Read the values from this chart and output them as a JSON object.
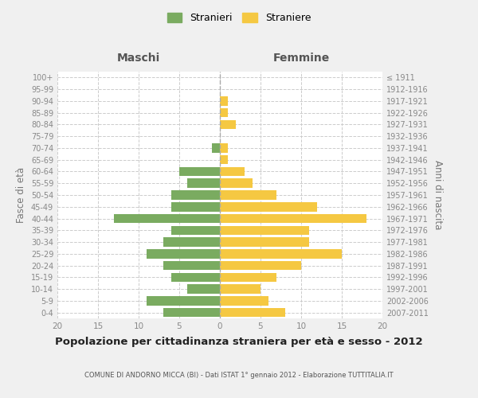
{
  "age_groups": [
    "0-4",
    "5-9",
    "10-14",
    "15-19",
    "20-24",
    "25-29",
    "30-34",
    "35-39",
    "40-44",
    "45-49",
    "50-54",
    "55-59",
    "60-64",
    "65-69",
    "70-74",
    "75-79",
    "80-84",
    "85-89",
    "90-94",
    "95-99",
    "100+"
  ],
  "birth_years": [
    "2007-2011",
    "2002-2006",
    "1997-2001",
    "1992-1996",
    "1987-1991",
    "1982-1986",
    "1977-1981",
    "1972-1976",
    "1967-1971",
    "1962-1966",
    "1957-1961",
    "1952-1956",
    "1947-1951",
    "1942-1946",
    "1937-1941",
    "1932-1936",
    "1927-1931",
    "1922-1926",
    "1917-1921",
    "1912-1916",
    "≤ 1911"
  ],
  "maschi": [
    7,
    9,
    4,
    6,
    7,
    9,
    7,
    6,
    13,
    6,
    6,
    4,
    5,
    0,
    1,
    0,
    0,
    0,
    0,
    0,
    0
  ],
  "femmine": [
    8,
    6,
    5,
    7,
    10,
    15,
    11,
    11,
    18,
    12,
    7,
    4,
    3,
    1,
    1,
    0,
    2,
    1,
    1,
    0,
    0
  ],
  "maschi_color": "#7aab60",
  "femmine_color": "#f5c842",
  "background_color": "#f0f0f0",
  "plot_bg_color": "#ffffff",
  "title": "Popolazione per cittadinanza straniera per età e sesso - 2012",
  "subtitle": "COMUNE DI ANDORNO MICCA (BI) - Dati ISTAT 1° gennaio 2012 - Elaborazione TUTTITALIA.IT",
  "xlabel_left": "Maschi",
  "xlabel_right": "Femmine",
  "ylabel_left": "Fasce di età",
  "ylabel_right": "Anni di nascita",
  "legend_maschi": "Stranieri",
  "legend_femmine": "Straniere",
  "xlim": 20
}
